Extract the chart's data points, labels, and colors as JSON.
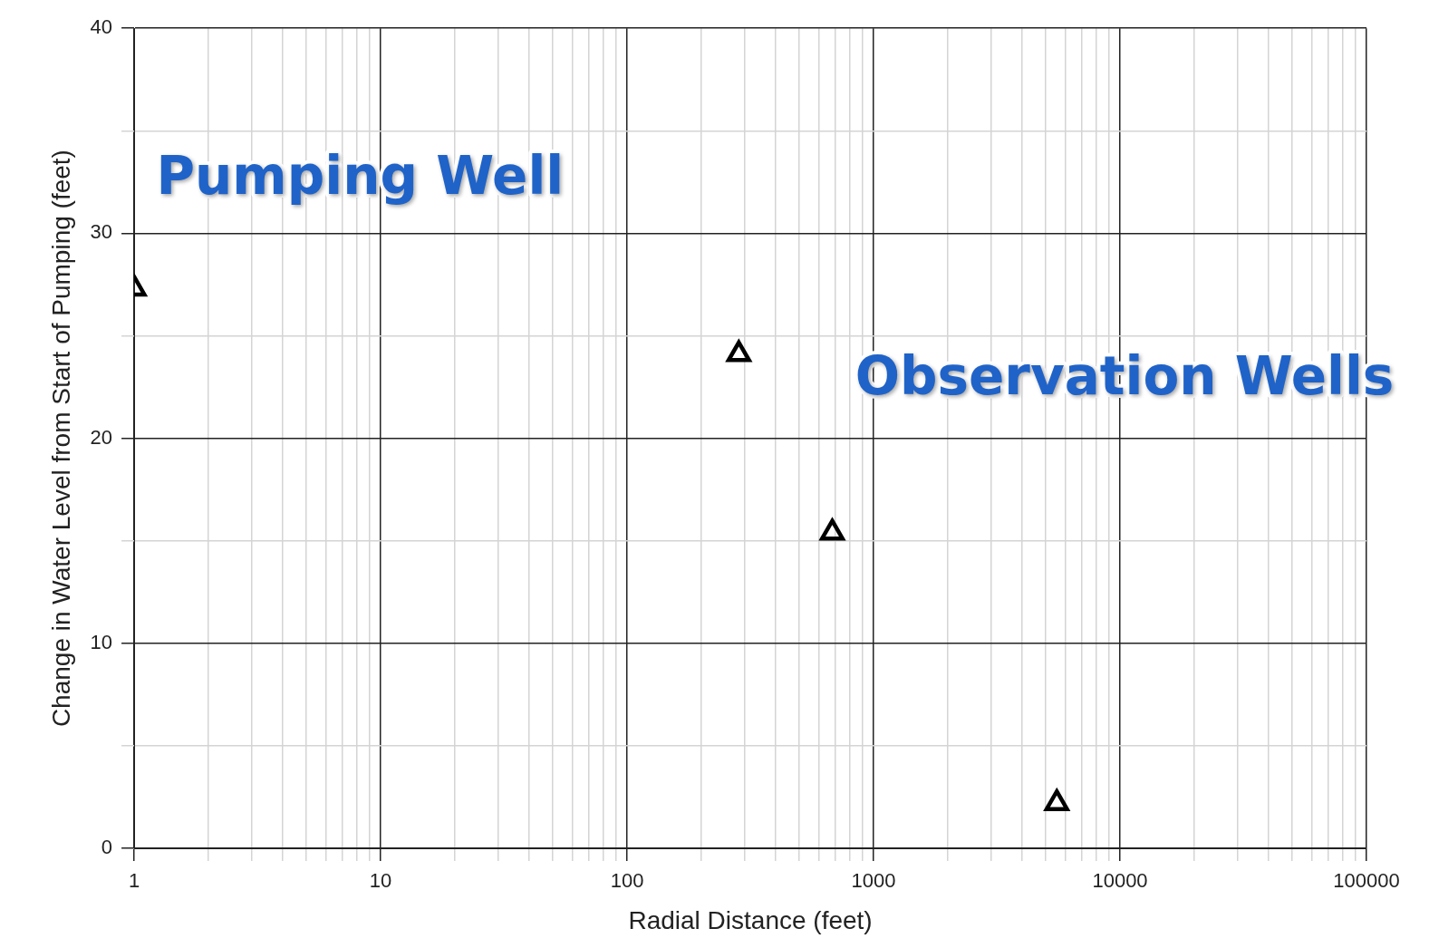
{
  "chart_data": {
    "type": "scatter",
    "xlabel": "Radial Distance (feet)",
    "ylabel": "Change in Water Level from Start of Pumping (feet)",
    "x": [
      1,
      284,
      680,
      5540
    ],
    "series": [
      {
        "color": "#000000",
        "values": [
          27.3,
          24.1,
          15.4,
          2.2
        ]
      }
    ],
    "marker": "triangle",
    "log": "x",
    "grid": true,
    "legend": false,
    "xlim": [
      1,
      100000
    ],
    "xticks": [
      1,
      {
        "value": 2,
        "label": null
      },
      {
        "value": 3,
        "label": null
      },
      {
        "value": 4,
        "label": null
      },
      {
        "value": 5,
        "label": null
      },
      {
        "value": 6,
        "label": null
      },
      {
        "value": 7,
        "label": null
      },
      {
        "value": 8,
        "label": null
      },
      {
        "value": 9,
        "label": null
      },
      10,
      {
        "value": 20,
        "label": null
      },
      {
        "value": 30,
        "label": null
      },
      {
        "value": 40,
        "label": null
      },
      {
        "value": 50,
        "label": null
      },
      {
        "value": 60,
        "label": null
      },
      {
        "value": 70,
        "label": null
      },
      {
        "value": 80,
        "label": null
      },
      {
        "value": 90,
        "label": null
      },
      100,
      {
        "value": 200,
        "label": null
      },
      {
        "value": 300,
        "label": null
      },
      {
        "value": 400,
        "label": null
      },
      {
        "value": 500,
        "label": null
      },
      {
        "value": 600,
        "label": null
      },
      {
        "value": 700,
        "label": null
      },
      {
        "value": 800,
        "label": null
      },
      {
        "value": 900,
        "label": null
      },
      1000,
      {
        "value": 2000,
        "label": null
      },
      {
        "value": 3000,
        "label": null
      },
      {
        "value": 4000,
        "label": null
      },
      {
        "value": 5000,
        "label": null
      },
      {
        "value": 6000,
        "label": null
      },
      {
        "value": 7000,
        "label": null
      },
      {
        "value": 8000,
        "label": null
      },
      {
        "value": 9000,
        "label": null
      },
      10000,
      {
        "value": 20000,
        "label": null
      },
      {
        "value": 30000,
        "label": null
      },
      {
        "value": 40000,
        "label": null
      },
      {
        "value": 50000,
        "label": null
      },
      {
        "value": 60000,
        "label": null
      },
      {
        "value": 70000,
        "label": null
      },
      {
        "value": 80000,
        "label": null
      },
      {
        "value": 90000,
        "label": null
      },
      100000
    ],
    "ylim": [
      0,
      40
    ],
    "yticks": [
      0,
      {
        "value": 5,
        "label": null
      },
      10,
      {
        "value": 15,
        "label": null
      },
      20,
      {
        "value": 25,
        "label": null
      },
      30,
      {
        "value": 35,
        "label": null
      },
      40
    ],
    "annotations": [
      "Pumping Well",
      "Observation Wells"
    ]
  }
}
